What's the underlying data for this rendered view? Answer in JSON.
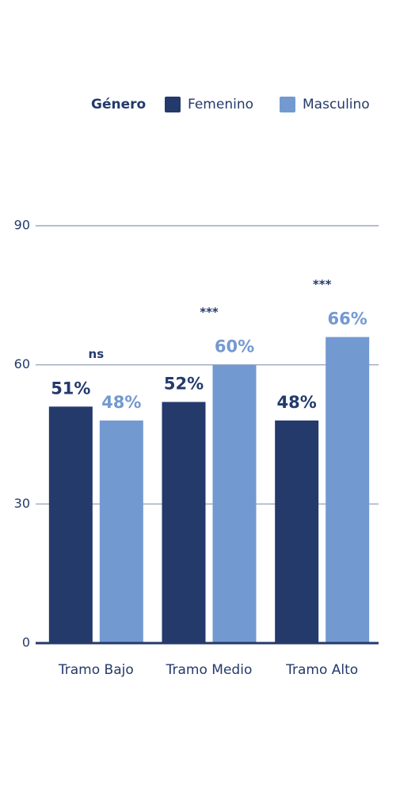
{
  "chart_data": {
    "type": "bar",
    "legend_title": "Género",
    "categories": [
      "Tramo Bajo",
      "Tramo Medio",
      "Tramo Alto"
    ],
    "series": [
      {
        "name": "Femenino",
        "color": "#243a6b",
        "values": [
          51,
          52,
          48
        ],
        "value_labels": [
          "51%",
          "52%",
          "48%"
        ]
      },
      {
        "name": "Masculino",
        "color": "#7399d1",
        "values": [
          48,
          60,
          66
        ],
        "value_labels": [
          "48%",
          "60%",
          "66%"
        ]
      }
    ],
    "significance": [
      "ns",
      "***",
      "***"
    ],
    "ylim": [
      0,
      90
    ],
    "yticks": [
      0,
      30,
      60,
      90
    ],
    "grid": true
  }
}
